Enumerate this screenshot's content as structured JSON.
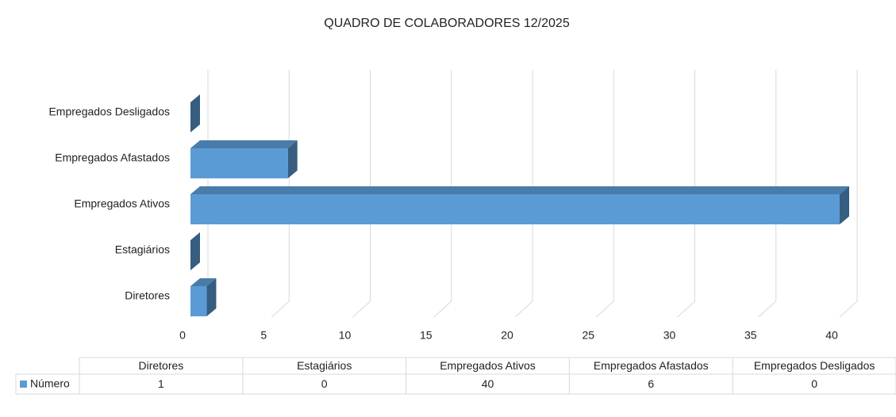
{
  "chart_data": {
    "type": "bar",
    "orientation": "horizontal",
    "title": "QUADRO DE COLABORADORES 12/2025",
    "categories": [
      "Diretores",
      "Estagiários",
      "Empregados Ativos",
      "Empregados Afastados",
      "Empregados Desligados"
    ],
    "series": [
      {
        "name": "Número",
        "color": "#5b9bd5",
        "values": [
          1,
          0,
          40,
          6,
          0
        ]
      }
    ],
    "xlim": [
      0,
      40
    ],
    "xticks": [
      0,
      5,
      10,
      15,
      20,
      25,
      30,
      35,
      40
    ],
    "grid": true,
    "data_table": true
  }
}
